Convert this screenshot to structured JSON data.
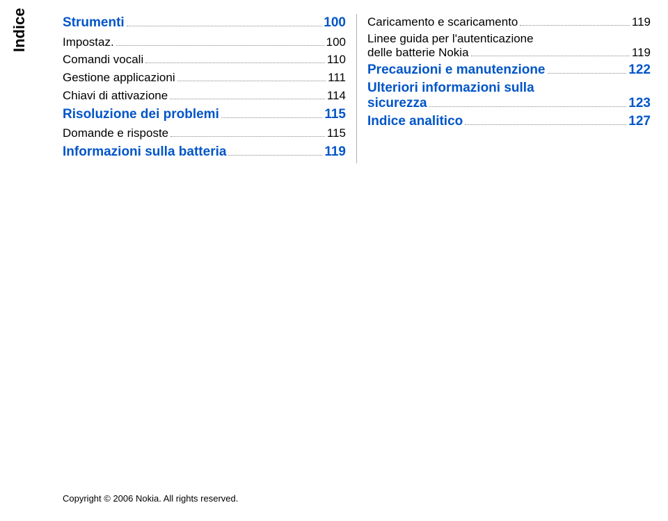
{
  "sidebar": {
    "label": "Indice"
  },
  "left_column": [
    {
      "type": "heading",
      "label": "Strumenti",
      "page": "100"
    },
    {
      "type": "sub",
      "label": "Impostaz.",
      "page": "100"
    },
    {
      "type": "sub",
      "label": "Comandi vocali",
      "page": "110"
    },
    {
      "type": "sub",
      "label": "Gestione applicazioni",
      "page": "111"
    },
    {
      "type": "sub",
      "label": "Chiavi di attivazione",
      "page": "114"
    },
    {
      "type": "heading",
      "label": "Risoluzione dei problemi",
      "page": "115"
    },
    {
      "type": "sub",
      "label": "Domande e risposte",
      "page": "115"
    },
    {
      "type": "heading",
      "label": "Informazioni sulla batteria",
      "page": "119"
    }
  ],
  "right_column": {
    "items": [
      {
        "type": "sub",
        "label": "Caricamento e scaricamento",
        "page": "119"
      },
      {
        "type": "sub-multiline",
        "line1": "Linee guida per l'autenticazione",
        "line2": "delle batterie Nokia",
        "page": "119"
      },
      {
        "type": "heading",
        "label": "Precauzioni e manutenzione",
        "page": "122"
      },
      {
        "type": "heading-multiline",
        "line1": "Ulteriori informazioni sulla",
        "line2": "sicurezza",
        "page": "123"
      },
      {
        "type": "heading",
        "label": "Indice analitico",
        "page": "127"
      }
    ]
  },
  "footer": {
    "copyright": "Copyright © 2006 Nokia. All rights reserved."
  },
  "colors": {
    "heading": "#0055c8",
    "text": "#000000",
    "divider": "#b0b0b0",
    "background": "#ffffff"
  }
}
